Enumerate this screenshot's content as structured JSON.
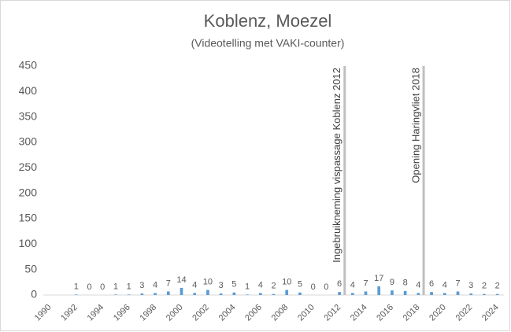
{
  "chart_data": {
    "type": "bar",
    "title": "Koblenz, Moezel",
    "subtitle": "(Videotelling met VAKI-counter)",
    "categories": [
      "1990",
      null,
      "1992",
      null,
      "1994",
      null,
      "1996",
      null,
      "1998",
      null,
      "2000",
      null,
      "2002",
      null,
      "2004",
      null,
      "2006",
      null,
      "2008",
      null,
      "2010",
      null,
      "2012",
      null,
      "2014",
      null,
      "2016",
      null,
      "2018",
      null,
      "2020",
      null,
      "2022",
      null,
      "2024"
    ],
    "values": [
      null,
      null,
      1,
      0,
      0,
      1,
      1,
      3,
      4,
      7,
      14,
      4,
      10,
      3,
      5,
      1,
      4,
      2,
      10,
      5,
      0,
      0,
      6,
      4,
      7,
      17,
      9,
      8,
      4,
      6,
      4,
      7,
      3,
      2,
      2
    ],
    "color": "#5b9bd5",
    "ylim": [
      0,
      450
    ],
    "yticks": [
      0,
      50,
      100,
      150,
      200,
      250,
      300,
      350,
      400,
      450
    ],
    "grid": false,
    "annotations": [
      {
        "text": "Ingebruikneming vispassage Koblenz 2012",
        "x": "2012"
      },
      {
        "text": "Opening Haringvliet 2018",
        "x": "2018"
      }
    ]
  }
}
